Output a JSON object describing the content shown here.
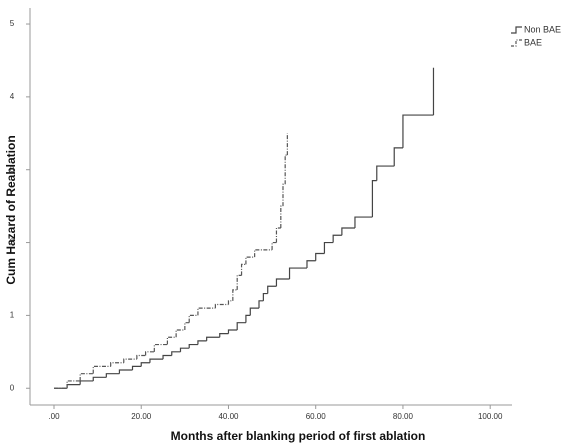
{
  "chart_data": {
    "type": "step",
    "x_label": "Months after blanking period of first ablation",
    "y_label": "Cum Hazard of Reablation",
    "xlim": [
      -5.5,
      105
    ],
    "ylim": [
      -0.23,
      5.22
    ],
    "xticks": [
      {
        "value": 0,
        "label": ".00"
      },
      {
        "value": 20,
        "label": "20.00"
      },
      {
        "value": 40,
        "label": "40.00"
      },
      {
        "value": 60,
        "label": "60.00"
      },
      {
        "value": 80,
        "label": "80.00"
      },
      {
        "value": 100,
        "label": "100.00"
      }
    ],
    "yticks": [
      0,
      1,
      2,
      3,
      4,
      5
    ],
    "legend": "top-right",
    "series": [
      {
        "name": "Non BAE",
        "color": "#444444",
        "dash": false,
        "x": [
          0,
          3,
          6,
          9,
          12,
          15,
          18,
          20,
          22,
          25,
          27,
          29,
          31,
          33,
          35,
          38,
          40,
          42,
          44,
          45,
          47,
          48,
          49,
          51,
          54,
          58,
          60,
          62,
          64,
          66,
          69,
          73,
          74,
          78,
          80,
          87
        ],
        "values": [
          0,
          0.05,
          0.1,
          0.15,
          0.2,
          0.25,
          0.3,
          0.35,
          0.4,
          0.45,
          0.5,
          0.55,
          0.6,
          0.65,
          0.7,
          0.75,
          0.8,
          0.9,
          1.0,
          1.1,
          1.2,
          1.3,
          1.4,
          1.5,
          1.65,
          1.75,
          1.85,
          2.0,
          2.1,
          2.2,
          2.35,
          2.85,
          3.05,
          3.3,
          3.75,
          4.4
        ]
      },
      {
        "name": "BAE",
        "color": "#555555",
        "dash": true,
        "x": [
          0,
          3,
          6,
          9,
          13,
          16,
          19,
          21,
          23,
          26,
          28,
          30,
          31,
          33,
          37,
          40,
          41,
          42,
          43,
          44,
          46,
          50,
          51,
          52,
          52.5,
          53,
          53.5
        ],
        "values": [
          0,
          0.1,
          0.2,
          0.3,
          0.35,
          0.4,
          0.45,
          0.5,
          0.6,
          0.7,
          0.8,
          0.9,
          1.0,
          1.1,
          1.15,
          1.2,
          1.35,
          1.55,
          1.7,
          1.8,
          1.9,
          2.0,
          2.2,
          2.5,
          2.8,
          3.2,
          3.5
        ]
      }
    ]
  }
}
